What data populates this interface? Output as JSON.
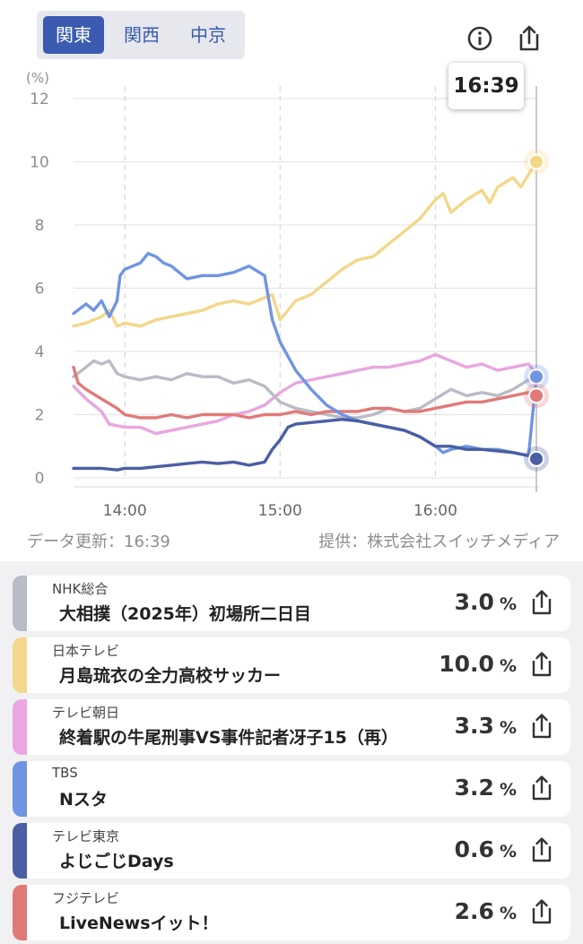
{
  "region_tabs": [
    "関東",
    "関西",
    "中京"
  ],
  "active_region": 0,
  "icons": {
    "info": "info-icon",
    "share": "share-icon"
  },
  "tooltip_time": "16:39",
  "footer": {
    "updated": "データ更新：16:39",
    "provider": "提供：株式会社スイッチメディア"
  },
  "chart_data": {
    "type": "line",
    "ylabel": "(%)",
    "ylim": [
      0,
      12
    ],
    "yticks": [
      0,
      2,
      4,
      6,
      8,
      10,
      12
    ],
    "xlim": [
      13.67,
      16.65
    ],
    "xticks": [
      {
        "v": 14,
        "label": "14:00"
      },
      {
        "v": 15,
        "label": "15:00"
      },
      {
        "v": 16,
        "label": "16:00"
      }
    ],
    "cursor_x": 16.65,
    "series": [
      {
        "name": "NHK総合",
        "color": "#b9bcc6",
        "x": [
          13.67,
          13.75,
          13.8,
          13.85,
          13.9,
          13.95,
          14.0,
          14.1,
          14.2,
          14.3,
          14.4,
          14.5,
          14.6,
          14.7,
          14.8,
          14.9,
          15.0,
          15.1,
          15.2,
          15.3,
          15.4,
          15.5,
          15.6,
          15.7,
          15.8,
          15.9,
          16.0,
          16.1,
          16.2,
          16.3,
          16.4,
          16.5,
          16.6,
          16.65
        ],
        "y": [
          3.2,
          3.5,
          3.7,
          3.6,
          3.7,
          3.3,
          3.2,
          3.1,
          3.2,
          3.1,
          3.3,
          3.2,
          3.2,
          3.0,
          3.1,
          2.9,
          2.4,
          2.2,
          2.1,
          2.0,
          1.9,
          1.9,
          2.0,
          2.2,
          2.1,
          2.2,
          2.5,
          2.8,
          2.6,
          2.7,
          2.6,
          2.8,
          3.1,
          3.0
        ]
      },
      {
        "name": "日本テレビ",
        "color": "#f3d78a",
        "x": [
          13.67,
          13.75,
          13.85,
          13.9,
          13.95,
          14.0,
          14.1,
          14.2,
          14.3,
          14.4,
          14.5,
          14.6,
          14.7,
          14.8,
          14.9,
          14.95,
          15.0,
          15.1,
          15.2,
          15.3,
          15.4,
          15.5,
          15.6,
          15.7,
          15.8,
          15.9,
          16.0,
          16.05,
          16.1,
          16.2,
          16.3,
          16.35,
          16.4,
          16.5,
          16.55,
          16.6,
          16.65
        ],
        "y": [
          4.8,
          4.9,
          5.1,
          5.3,
          4.8,
          4.9,
          4.8,
          5.0,
          5.1,
          5.2,
          5.3,
          5.5,
          5.6,
          5.5,
          5.7,
          5.8,
          5.0,
          5.6,
          5.8,
          6.2,
          6.6,
          6.9,
          7.0,
          7.4,
          7.8,
          8.2,
          8.8,
          9.0,
          8.4,
          8.8,
          9.1,
          8.7,
          9.2,
          9.5,
          9.2,
          9.6,
          10.0
        ]
      },
      {
        "name": "テレビ朝日",
        "color": "#e9a6e0",
        "x": [
          13.67,
          13.75,
          13.85,
          13.9,
          14.0,
          14.1,
          14.2,
          14.3,
          14.4,
          14.5,
          14.6,
          14.7,
          14.8,
          14.9,
          15.0,
          15.1,
          15.2,
          15.3,
          15.4,
          15.5,
          15.6,
          15.7,
          15.8,
          15.9,
          16.0,
          16.1,
          16.2,
          16.3,
          16.4,
          16.5,
          16.6,
          16.65
        ],
        "y": [
          2.9,
          2.5,
          2.1,
          1.7,
          1.6,
          1.6,
          1.4,
          1.5,
          1.6,
          1.7,
          1.8,
          2.0,
          2.1,
          2.3,
          2.7,
          3.0,
          3.1,
          3.2,
          3.3,
          3.4,
          3.5,
          3.5,
          3.6,
          3.7,
          3.9,
          3.7,
          3.5,
          3.6,
          3.4,
          3.5,
          3.6,
          3.3
        ]
      },
      {
        "name": "TBS",
        "color": "#6f95e2",
        "x": [
          13.67,
          13.75,
          13.8,
          13.85,
          13.9,
          13.95,
          13.97,
          14.0,
          14.1,
          14.15,
          14.2,
          14.25,
          14.3,
          14.4,
          14.5,
          14.6,
          14.7,
          14.8,
          14.9,
          14.95,
          15.0,
          15.1,
          15.2,
          15.3,
          15.4,
          15.5,
          15.6,
          15.7,
          15.8,
          15.9,
          16.0,
          16.05,
          16.1,
          16.2,
          16.3,
          16.4,
          16.5,
          16.6,
          16.65
        ],
        "y": [
          5.2,
          5.5,
          5.3,
          5.6,
          5.1,
          5.6,
          6.4,
          6.6,
          6.8,
          7.1,
          7.0,
          6.8,
          6.7,
          6.3,
          6.4,
          6.4,
          6.5,
          6.7,
          6.4,
          5.0,
          4.3,
          3.4,
          2.8,
          2.3,
          2.0,
          1.8,
          1.7,
          1.6,
          1.5,
          1.3,
          1.0,
          0.8,
          0.9,
          1.0,
          0.9,
          0.9,
          0.8,
          0.7,
          3.2
        ]
      },
      {
        "name": "テレビ東京",
        "color": "#4a5fa3",
        "x": [
          13.67,
          13.75,
          13.85,
          13.95,
          14.0,
          14.1,
          14.2,
          14.3,
          14.4,
          14.5,
          14.6,
          14.7,
          14.8,
          14.9,
          14.95,
          15.0,
          15.05,
          15.1,
          15.2,
          15.3,
          15.4,
          15.5,
          15.6,
          15.7,
          15.8,
          15.9,
          16.0,
          16.1,
          16.2,
          16.3,
          16.4,
          16.5,
          16.6,
          16.65
        ],
        "y": [
          0.3,
          0.3,
          0.3,
          0.25,
          0.3,
          0.3,
          0.35,
          0.4,
          0.45,
          0.5,
          0.45,
          0.5,
          0.4,
          0.5,
          0.9,
          1.2,
          1.6,
          1.7,
          1.75,
          1.8,
          1.85,
          1.8,
          1.7,
          1.6,
          1.5,
          1.3,
          1.0,
          1.0,
          0.9,
          0.9,
          0.85,
          0.8,
          0.7,
          0.6
        ]
      },
      {
        "name": "フジテレビ",
        "color": "#e07a78",
        "x": [
          13.67,
          13.7,
          13.75,
          13.85,
          13.95,
          14.0,
          14.1,
          14.2,
          14.3,
          14.4,
          14.5,
          14.6,
          14.7,
          14.8,
          14.9,
          15.0,
          15.1,
          15.2,
          15.3,
          15.4,
          15.5,
          15.6,
          15.7,
          15.8,
          15.9,
          16.0,
          16.1,
          16.2,
          16.3,
          16.4,
          16.5,
          16.6,
          16.65
        ],
        "y": [
          3.5,
          3.0,
          2.8,
          2.5,
          2.2,
          2.0,
          1.9,
          1.9,
          2.0,
          1.9,
          2.0,
          2.0,
          2.0,
          1.9,
          2.0,
          2.0,
          2.1,
          2.0,
          2.1,
          2.1,
          2.1,
          2.2,
          2.2,
          2.1,
          2.1,
          2.2,
          2.3,
          2.4,
          2.4,
          2.5,
          2.6,
          2.7,
          2.6
        ]
      }
    ]
  },
  "programs": [
    {
      "channel": "NHK総合",
      "title": "大相撲（2025年）初場所二日目",
      "value": "3.0",
      "unit": "%",
      "color": "#b9bcc6"
    },
    {
      "channel": "日本テレビ",
      "title": "月島琉衣の全力高校サッカー",
      "value": "10.0",
      "unit": "%",
      "color": "#f3d78a"
    },
    {
      "channel": "テレビ朝日",
      "title": "終着駅の牛尾刑事VS事件記者冴子15（再）",
      "value": "3.3",
      "unit": "%",
      "color": "#e9a6e0"
    },
    {
      "channel": "TBS",
      "title": "Nスタ",
      "value": "3.2",
      "unit": "%",
      "color": "#6f95e2"
    },
    {
      "channel": "テレビ東京",
      "title": "よじごじDays",
      "value": "0.6",
      "unit": "%",
      "color": "#4a5fa3"
    },
    {
      "channel": "フジテレビ",
      "title": "LiveNewsイット！",
      "value": "2.6",
      "unit": "%",
      "color": "#e07a78"
    }
  ]
}
